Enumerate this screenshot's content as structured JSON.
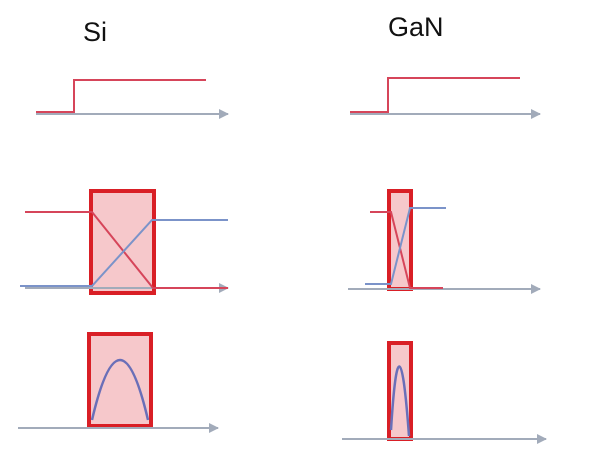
{
  "columns": [
    {
      "title": "Si"
    },
    {
      "title": "GaN"
    }
  ],
  "colors": {
    "gate_signal": "#d6455a",
    "current": "#7b93c9",
    "axis": "#a2abba",
    "switching_box_stroke": "#d91f26",
    "switching_box_fill": "#f6c8cb",
    "loss_curve": "#6a6fb8"
  }
}
